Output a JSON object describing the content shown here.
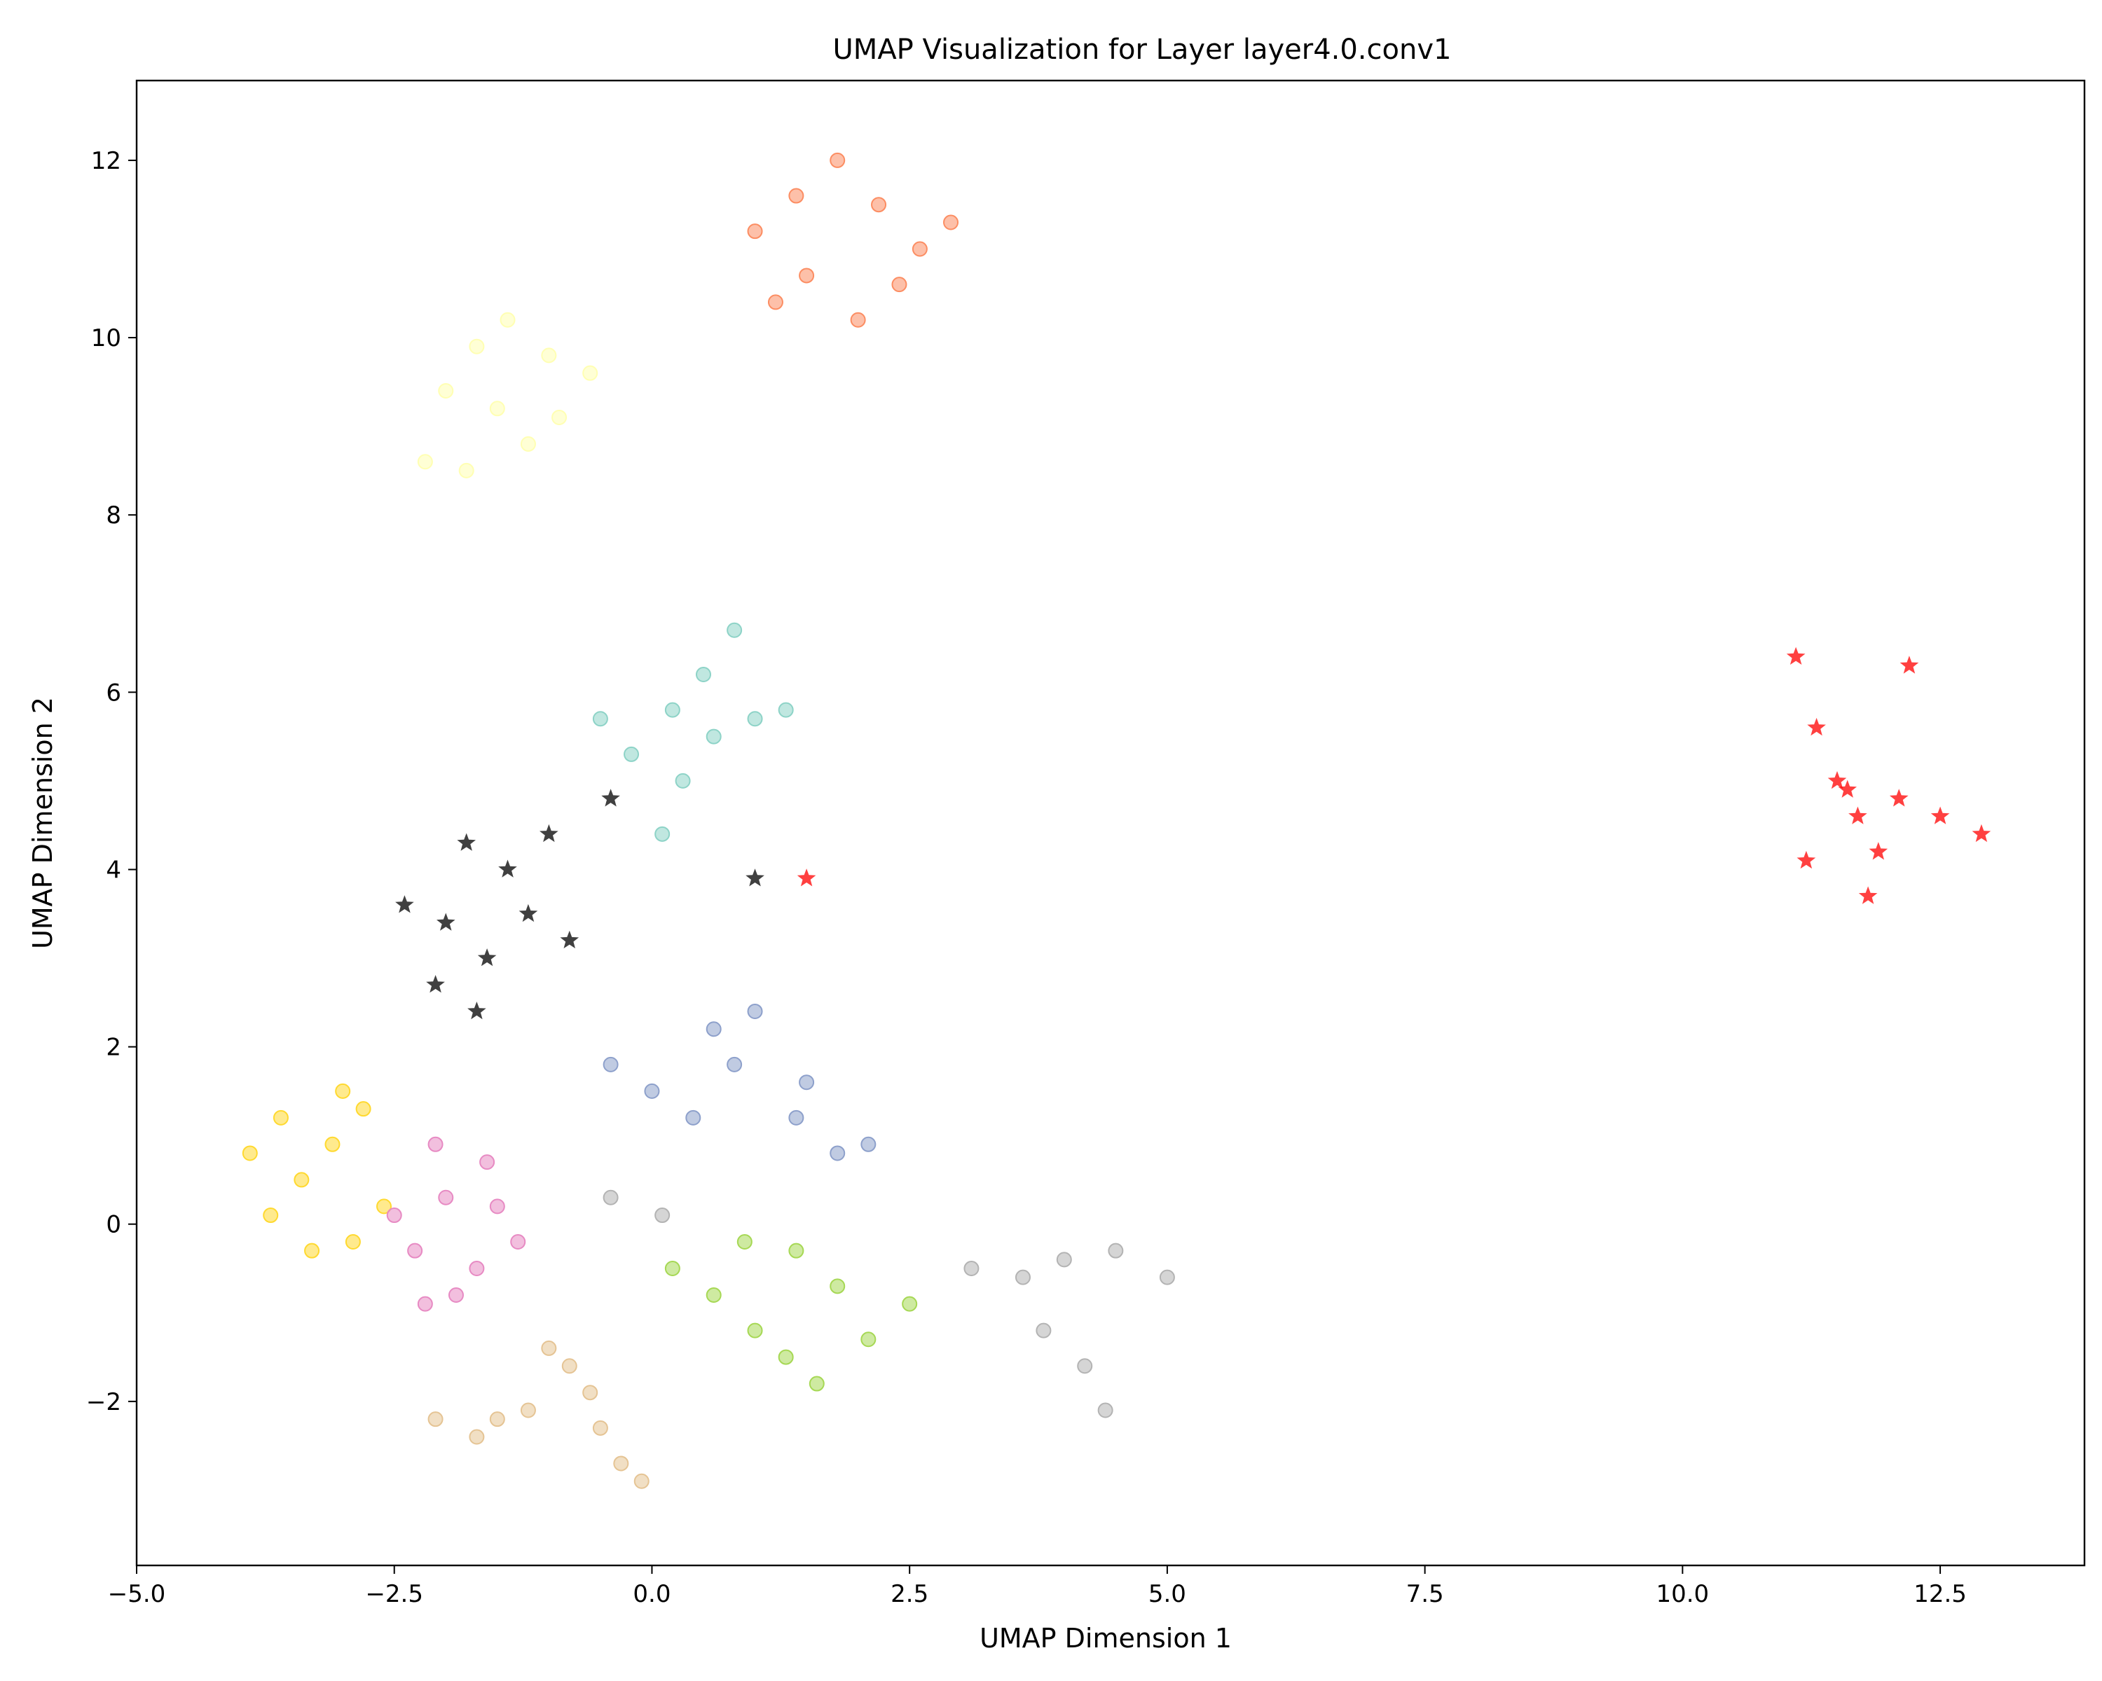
{
  "chart_data": {
    "type": "scatter",
    "title": "UMAP Visualization for Layer layer4.0.conv1",
    "xlabel": "UMAP Dimension 1",
    "ylabel": "UMAP Dimension 2",
    "xlim": [
      -5.0,
      13.9
    ],
    "ylim": [
      -3.85,
      12.9
    ],
    "xticks": [
      -5.0,
      -2.5,
      0.0,
      2.5,
      5.0,
      7.5,
      10.0,
      12.5
    ],
    "xtick_labels": [
      "−5.0",
      "−2.5",
      "0.0",
      "2.5",
      "5.0",
      "7.5",
      "10.0",
      "12.5"
    ],
    "yticks": [
      -2,
      0,
      2,
      4,
      6,
      8,
      10,
      12
    ],
    "ytick_labels": [
      "−2",
      "0",
      "2",
      "4",
      "6",
      "8",
      "10",
      "12"
    ],
    "grid": false,
    "legend": "none",
    "series": [
      {
        "color": "#ffd92f",
        "marker": "circle",
        "points": [
          [
            -3.9,
            0.8
          ],
          [
            -3.6,
            1.2
          ],
          [
            -3.4,
            0.5
          ],
          [
            -3.1,
            0.9
          ],
          [
            -2.8,
            1.3
          ],
          [
            -3.3,
            -0.3
          ],
          [
            -2.6,
            0.2
          ],
          [
            -3.0,
            1.5
          ],
          [
            -3.7,
            0.1
          ],
          [
            -2.9,
            -0.2
          ]
        ]
      },
      {
        "color": "#e78ac3",
        "marker": "circle",
        "points": [
          [
            -2.3,
            -0.3
          ],
          [
            -2.0,
            0.3
          ],
          [
            -1.7,
            -0.5
          ],
          [
            -1.5,
            0.2
          ],
          [
            -2.1,
            0.9
          ],
          [
            -1.3,
            -0.2
          ],
          [
            -1.9,
            -0.8
          ],
          [
            -2.5,
            0.1
          ],
          [
            -1.6,
            0.7
          ],
          [
            -2.2,
            -0.9
          ]
        ]
      },
      {
        "color": "#e5c494",
        "marker": "circle",
        "points": [
          [
            -2.1,
            -2.2
          ],
          [
            -1.7,
            -2.4
          ],
          [
            -1.2,
            -2.1
          ],
          [
            -0.8,
            -1.6
          ],
          [
            -0.5,
            -2.3
          ],
          [
            -0.3,
            -2.7
          ],
          [
            -0.1,
            -2.9
          ],
          [
            -1.0,
            -1.4
          ],
          [
            -0.6,
            -1.9
          ],
          [
            -1.5,
            -2.2
          ]
        ]
      },
      {
        "color": "#a6d854",
        "marker": "circle",
        "points": [
          [
            0.2,
            -0.5
          ],
          [
            0.6,
            -0.8
          ],
          [
            1.0,
            -1.2
          ],
          [
            1.4,
            -0.3
          ],
          [
            1.8,
            -0.7
          ],
          [
            2.1,
            -1.3
          ],
          [
            1.6,
            -1.8
          ],
          [
            2.5,
            -0.9
          ],
          [
            0.9,
            -0.2
          ],
          [
            1.3,
            -1.5
          ]
        ]
      },
      {
        "color": "#b3b3b3",
        "marker": "circle",
        "points": [
          [
            3.1,
            -0.5
          ],
          [
            3.6,
            -0.6
          ],
          [
            4.0,
            -0.4
          ],
          [
            4.5,
            -0.3
          ],
          [
            5.0,
            -0.6
          ],
          [
            4.2,
            -1.6
          ],
          [
            4.4,
            -2.1
          ],
          [
            3.8,
            -1.2
          ],
          [
            -0.4,
            0.3
          ],
          [
            0.1,
            0.1
          ]
        ]
      },
      {
        "color": "#8da0cb",
        "marker": "circle",
        "points": [
          [
            -0.4,
            1.8
          ],
          [
            0.0,
            1.5
          ],
          [
            0.4,
            1.2
          ],
          [
            0.8,
            1.8
          ],
          [
            1.0,
            2.4
          ],
          [
            1.4,
            1.2
          ],
          [
            1.8,
            0.8
          ],
          [
            2.1,
            0.9
          ],
          [
            0.6,
            2.2
          ],
          [
            1.5,
            1.6
          ]
        ]
      },
      {
        "color": "#8dd3c7",
        "marker": "circle",
        "points": [
          [
            -0.5,
            5.7
          ],
          [
            -0.2,
            5.3
          ],
          [
            0.2,
            5.8
          ],
          [
            0.5,
            6.2
          ],
          [
            0.8,
            6.7
          ],
          [
            1.0,
            5.7
          ],
          [
            1.3,
            5.8
          ],
          [
            0.3,
            5.0
          ],
          [
            0.1,
            4.4
          ],
          [
            0.6,
            5.5
          ]
        ]
      },
      {
        "color": "#fc8d62",
        "marker": "circle",
        "points": [
          [
            1.0,
            11.2
          ],
          [
            1.4,
            11.6
          ],
          [
            1.8,
            12.0
          ],
          [
            2.2,
            11.5
          ],
          [
            2.6,
            11.0
          ],
          [
            2.9,
            11.3
          ],
          [
            2.0,
            10.2
          ],
          [
            1.5,
            10.7
          ],
          [
            1.2,
            10.4
          ],
          [
            2.4,
            10.6
          ]
        ]
      },
      {
        "color": "#ffffb3",
        "marker": "circle",
        "points": [
          [
            -2.2,
            8.6
          ],
          [
            -2.0,
            9.4
          ],
          [
            -1.7,
            9.9
          ],
          [
            -1.4,
            10.2
          ],
          [
            -1.0,
            9.8
          ],
          [
            -0.6,
            9.6
          ],
          [
            -1.2,
            8.8
          ],
          [
            -1.8,
            8.5
          ],
          [
            -1.5,
            9.2
          ],
          [
            -0.9,
            9.1
          ]
        ]
      },
      {
        "color": "#000000",
        "marker": "star",
        "points": [
          [
            -2.0,
            3.4
          ],
          [
            -1.8,
            4.3
          ],
          [
            -1.6,
            3.0
          ],
          [
            -1.4,
            4.0
          ],
          [
            -1.2,
            3.5
          ],
          [
            -1.0,
            4.4
          ],
          [
            -0.8,
            3.2
          ],
          [
            -1.7,
            2.4
          ],
          [
            -2.4,
            3.6
          ],
          [
            -2.1,
            2.7
          ],
          [
            -0.4,
            4.8
          ],
          [
            1.0,
            3.9
          ]
        ]
      },
      {
        "color": "#ff0000",
        "marker": "star",
        "points": [
          [
            11.1,
            6.4
          ],
          [
            11.3,
            5.6
          ],
          [
            11.5,
            5.0
          ],
          [
            11.7,
            4.6
          ],
          [
            11.9,
            4.2
          ],
          [
            11.8,
            3.7
          ],
          [
            12.2,
            6.3
          ],
          [
            12.5,
            4.6
          ],
          [
            12.9,
            4.4
          ],
          [
            11.2,
            4.1
          ],
          [
            11.6,
            4.9
          ],
          [
            12.1,
            4.8
          ],
          [
            1.5,
            3.9
          ]
        ]
      }
    ]
  }
}
